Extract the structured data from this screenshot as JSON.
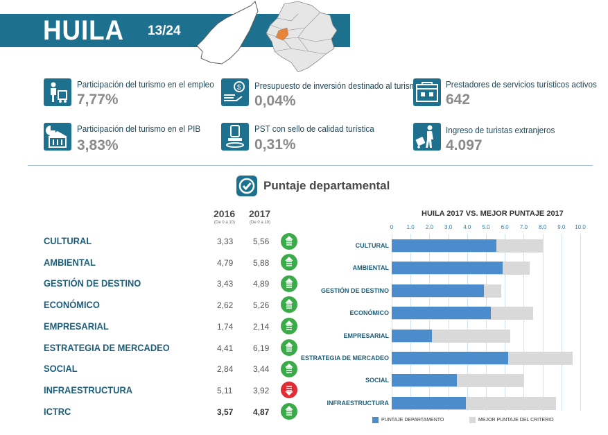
{
  "header": {
    "title": "HUILA",
    "rank": "13/24"
  },
  "indicators": [
    {
      "label": "Participación del turismo en el empleo",
      "value": "7,77%",
      "icon": "employment-icon"
    },
    {
      "label": "Presupuesto de inversión destinado al turismo",
      "value": "0,04%",
      "icon": "budget-icon"
    },
    {
      "label": "Prestadores de servicios turísticos activos",
      "value": "642",
      "icon": "providers-icon"
    },
    {
      "label": "Participación del turismo en el PIB",
      "value": "3,83%",
      "icon": "gdp-icon"
    },
    {
      "label": "PST con sello de calidad turística",
      "value": "0,31%",
      "icon": "quality-seal-icon"
    },
    {
      "label": "Ingreso de turistas extranjeros",
      "value": "4.097",
      "icon": "foreign-tourists-icon"
    }
  ],
  "section": {
    "title": "Puntaje departamental"
  },
  "table": {
    "year_2016": "2016",
    "year_2017": "2017",
    "scale_2016": "(De 0 a 10)",
    "scale_2017": "(De 0 a 10)",
    "rows": [
      {
        "category": "CULTURAL",
        "v2016": "3,33",
        "v2017": "5,56",
        "trend": "up"
      },
      {
        "category": "AMBIENTAL",
        "v2016": "4,79",
        "v2017": "5,88",
        "trend": "up"
      },
      {
        "category": "GESTIÓN DE DESTINO",
        "v2016": "3,43",
        "v2017": "4,89",
        "trend": "up"
      },
      {
        "category": "ECONÓMICO",
        "v2016": "2,62",
        "v2017": "5,26",
        "trend": "up"
      },
      {
        "category": "EMPRESARIAL",
        "v2016": "1,74",
        "v2017": "2,14",
        "trend": "up"
      },
      {
        "category": "ESTRATEGIA DE MERCADEO",
        "v2016": "4,41",
        "v2017": "6,19",
        "trend": "up"
      },
      {
        "category": "SOCIAL",
        "v2016": "2,84",
        "v2017": "3,44",
        "trend": "up"
      },
      {
        "category": "INFRAESTRUCTURA",
        "v2016": "5,11",
        "v2017": "3,92",
        "trend": "down"
      },
      {
        "category": "ICTRC",
        "v2016": "3,57",
        "v2017": "4,87",
        "trend": "up"
      }
    ]
  },
  "chart_data": {
    "type": "bar",
    "orientation": "horizontal",
    "title": "HUILA 2017 VS. MEJOR PUNTAJE 2017",
    "categories": [
      "CULTURAL",
      "AMBIENTAL",
      "GESTIÓN DE DESTINO",
      "ECONÓMICO",
      "EMPRESARIAL",
      "ESTRATEGIA DE MERCADEO",
      "SOCIAL",
      "INFRAESTRUCTURA"
    ],
    "series": [
      {
        "name": "PUNTAJE DEPARTAMENTO",
        "values": [
          5.56,
          5.88,
          4.89,
          5.26,
          2.14,
          6.19,
          3.44,
          3.92
        ],
        "color": "#4a8ccc"
      },
      {
        "name": "MEJOR PUNTAJE DEL CRITERIO",
        "values": [
          8.0,
          7.3,
          5.8,
          7.5,
          6.3,
          9.6,
          7.0,
          8.7
        ],
        "color": "#d9d9d9"
      }
    ],
    "xlim": [
      0,
      10
    ],
    "ticks": [
      "0",
      "1.0",
      "2.0",
      "3.0",
      "4.0",
      "5.0",
      "6.0",
      "7.0",
      "8.0",
      "9.0",
      "10.0"
    ],
    "grid": true,
    "legend": "bottom"
  },
  "colors": {
    "primary": "#1d718f",
    "up": "#3bab49",
    "down": "#e42b33",
    "bar_department": "#4a8ccc",
    "bar_best": "#d9d9d9"
  }
}
